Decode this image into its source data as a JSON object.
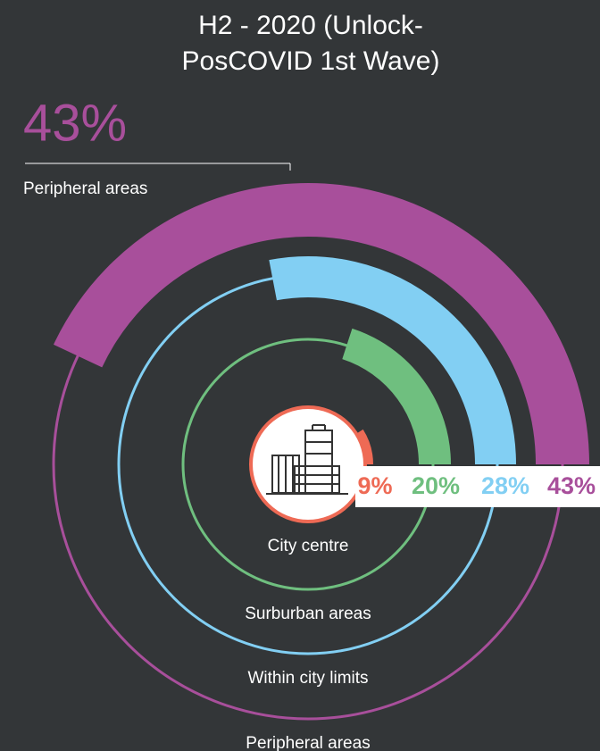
{
  "chart_data": {
    "type": "radial_bar",
    "title_lines": [
      "H2 - 2020 (Unlock-",
      "PosCOVID 1st Wave)"
    ],
    "categories": [
      "City centre",
      "Surburban areas",
      "Within city limits",
      "Peripheral areas"
    ],
    "values": [
      9,
      20,
      28,
      43
    ],
    "value_labels": [
      "9%",
      "20%",
      "28%",
      "43%"
    ],
    "colors": [
      "#ee6a55",
      "#6fbf7f",
      "#82cff3",
      "#a84f9b"
    ],
    "highlight": 3
  }
}
